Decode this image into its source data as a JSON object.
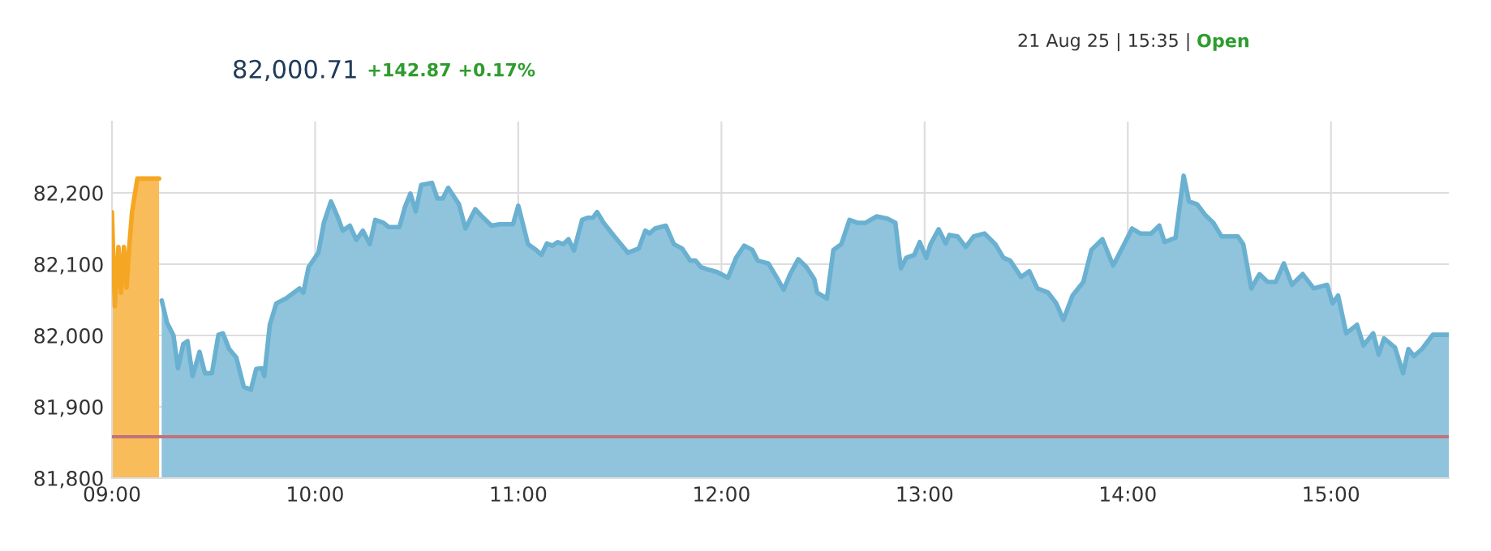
{
  "chart_data": {
    "type": "area",
    "title": "82,000.71",
    "subtitle": "+142.87 +0.17%",
    "annotations": [
      "21 Aug 25 | 15:35 |",
      "Open"
    ],
    "xlim": [
      9,
      15.58
    ],
    "ylim": [
      81800,
      82300
    ],
    "xticks": [
      {
        "value": 9,
        "label": "09:00"
      },
      {
        "value": 10,
        "label": "10:00"
      },
      {
        "value": 11,
        "label": "11:00"
      },
      {
        "value": 12,
        "label": "12:00"
      },
      {
        "value": 13,
        "label": "13:00"
      },
      {
        "value": 14,
        "label": "14:00"
      },
      {
        "value": 15,
        "label": "15:00"
      }
    ],
    "yticks": [
      {
        "value": 81800,
        "label": "81,800"
      },
      {
        "value": 81900,
        "label": "81,900"
      },
      {
        "value": 82000,
        "label": "82,000"
      },
      {
        "value": 82100,
        "label": "82,100"
      },
      {
        "value": 82200,
        "label": "82,200"
      }
    ],
    "grid": true,
    "ref_lines": [
      {
        "axis": "y",
        "value": 81858,
        "color": "#c0737a"
      }
    ],
    "series": [
      {
        "color": "#f5a623",
        "x": [
          9.0,
          9.014,
          9.032,
          9.045,
          9.059,
          9.072,
          9.085,
          9.099,
          9.125,
          9.232
        ],
        "values": [
          82173,
          82041,
          82124,
          82060,
          82124,
          82067,
          82124,
          82173,
          82220,
          82220
        ]
      },
      {
        "color": "#6ab0d0",
        "x": [
          9.245,
          9.271,
          9.303,
          9.325,
          9.351,
          9.372,
          9.397,
          9.431,
          9.458,
          9.492,
          9.524,
          9.546,
          9.577,
          9.612,
          9.649,
          9.684,
          9.71,
          9.737,
          9.75,
          9.777,
          9.809,
          9.857,
          9.923,
          9.942,
          9.968,
          9.99,
          10.016,
          10.043,
          10.078,
          10.11,
          10.136,
          10.171,
          10.203,
          10.235,
          10.269,
          10.296,
          10.336,
          10.362,
          10.415,
          10.442,
          10.469,
          10.495,
          10.522,
          10.575,
          10.602,
          10.628,
          10.655,
          10.708,
          10.74,
          10.788,
          10.828,
          10.868,
          10.907,
          10.974,
          11.0,
          11.048,
          11.088,
          11.114,
          11.141,
          11.168,
          11.194,
          11.221,
          11.247,
          11.274,
          11.314,
          11.34,
          11.367,
          11.388,
          11.42,
          11.473,
          11.54,
          11.593,
          11.625,
          11.646,
          11.673,
          11.726,
          11.766,
          11.806,
          11.846,
          11.872,
          11.899,
          11.939,
          11.979,
          12.032,
          12.072,
          12.112,
          12.152,
          12.178,
          12.231,
          12.271,
          12.306,
          12.338,
          12.378,
          12.418,
          12.457,
          12.471,
          12.519,
          12.551,
          12.59,
          12.63,
          12.67,
          12.71,
          12.763,
          12.816,
          12.856,
          12.883,
          12.91,
          12.949,
          12.976,
          13.008,
          13.029,
          13.069,
          13.104,
          13.122,
          13.162,
          13.202,
          13.242,
          13.295,
          13.348,
          13.388,
          13.421,
          13.475,
          13.515,
          13.555,
          13.608,
          13.648,
          13.683,
          13.728,
          13.781,
          13.821,
          13.875,
          13.928,
          13.968,
          14.021,
          14.061,
          14.115,
          14.155,
          14.181,
          14.235,
          14.275,
          14.301,
          14.341,
          14.381,
          14.421,
          14.461,
          14.541,
          14.568,
          14.608,
          14.648,
          14.688,
          14.728,
          14.768,
          14.808,
          14.861,
          14.915,
          14.981,
          15.008,
          15.035,
          15.075,
          15.128,
          15.16,
          15.208,
          15.235,
          15.261,
          15.315,
          15.355,
          15.381,
          15.408,
          15.448,
          15.501,
          15.58
        ],
        "values": [
          82049,
          82018,
          82000,
          81954,
          81988,
          81992,
          81943,
          81977,
          81947,
          81947,
          82001,
          82003,
          81981,
          81969,
          81928,
          81924,
          81953,
          81954,
          81943,
          82015,
          82045,
          82052,
          82066,
          82060,
          82096,
          82105,
          82116,
          82158,
          82188,
          82167,
          82147,
          82154,
          82134,
          82147,
          82128,
          82162,
          82158,
          82152,
          82152,
          82180,
          82199,
          82174,
          82211,
          82214,
          82192,
          82192,
          82207,
          82184,
          82150,
          82177,
          82165,
          82154,
          82156,
          82156,
          82182,
          82128,
          82120,
          82113,
          82129,
          82126,
          82131,
          82128,
          82135,
          82119,
          82162,
          82165,
          82165,
          82173,
          82158,
          82139,
          82116,
          82122,
          82147,
          82143,
          82150,
          82154,
          82128,
          82122,
          82105,
          82105,
          82096,
          82092,
          82089,
          82081,
          82109,
          82126,
          82120,
          82105,
          82101,
          82082,
          82064,
          82086,
          82107,
          82096,
          82079,
          82060,
          82052,
          82120,
          82128,
          82162,
          82158,
          82158,
          82167,
          82164,
          82158,
          82094,
          82109,
          82113,
          82131,
          82109,
          82128,
          82149,
          82129,
          82141,
          82139,
          82124,
          82139,
          82143,
          82128,
          82109,
          82105,
          82082,
          82090,
          82066,
          82060,
          82045,
          82022,
          82056,
          82075,
          82120,
          82135,
          82098,
          82120,
          82150,
          82143,
          82143,
          82154,
          82131,
          82137,
          82224,
          82188,
          82184,
          82169,
          82158,
          82139,
          82139,
          82128,
          82066,
          82086,
          82075,
          82075,
          82101,
          82071,
          82086,
          82066,
          82071,
          82045,
          82056,
          82003,
          82015,
          81986,
          82003,
          81973,
          81996,
          81983,
          81947,
          81981,
          81971,
          81981,
          82001,
          82001
        ]
      }
    ]
  }
}
